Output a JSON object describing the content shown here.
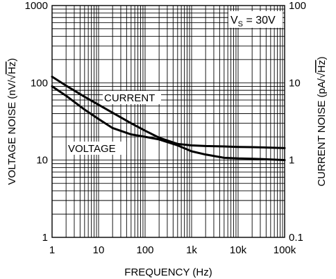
{
  "chart_data": {
    "type": "line",
    "x_scale": "log",
    "y_scale": "log",
    "xlim": [
      1,
      100000
    ],
    "ylim": [
      1,
      1000
    ],
    "y2lim": [
      0.1,
      100
    ],
    "grid": true,
    "xlabel": "FREQUENCY (Hz)",
    "ylabel": "VOLTAGE NOISE (nV/√Hz)",
    "ylabel_prefix": "VOLTAGE NOISE (nV/",
    "ylabel_sqrt": "Hz",
    "ylabel_suffix": ")",
    "y2label": "CURRENT NOISE (pA/√Hz)",
    "y2label_prefix": "CURRENT NOISE (pA/",
    "y2label_sqrt": "Hz",
    "y2label_suffix": ")",
    "x_ticks": [
      1,
      10,
      100,
      1000,
      10000,
      100000
    ],
    "x_tick_labels": [
      "1",
      "10",
      "100",
      "1k",
      "10k",
      "100k"
    ],
    "y_ticks": [
      1,
      10,
      100,
      1000
    ],
    "y_tick_labels": [
      "1",
      "10",
      "100",
      "1000"
    ],
    "y2_ticks": [
      0.1,
      1,
      10,
      100
    ],
    "y2_tick_labels": [
      "0.1",
      "1",
      "10",
      "100"
    ],
    "annotation": {
      "main": "V",
      "sub": "S",
      "rest": " = 30V"
    },
    "series": [
      {
        "name": "CURRENT",
        "axis": "right",
        "x": [
          1,
          2,
          5,
          10,
          20,
          50,
          100,
          200,
          500,
          1000,
          2000,
          5000,
          10000,
          20000,
          50000,
          100000
        ],
        "values": [
          12,
          9.2,
          6.6,
          5.2,
          4.1,
          3.0,
          2.4,
          1.95,
          1.62,
          1.55,
          1.52,
          1.5,
          1.48,
          1.47,
          1.45,
          1.43
        ]
      },
      {
        "name": "VOLTAGE",
        "axis": "left",
        "x": [
          1,
          2,
          5,
          10,
          20,
          50,
          100,
          200,
          500,
          1000,
          2000,
          5000,
          10000,
          20000,
          50000,
          100000
        ],
        "values": [
          90,
          68,
          45,
          34,
          26,
          21.5,
          20,
          18.5,
          15.5,
          13,
          11.8,
          10.7,
          10.5,
          10.4,
          10.2,
          10
        ]
      }
    ]
  }
}
